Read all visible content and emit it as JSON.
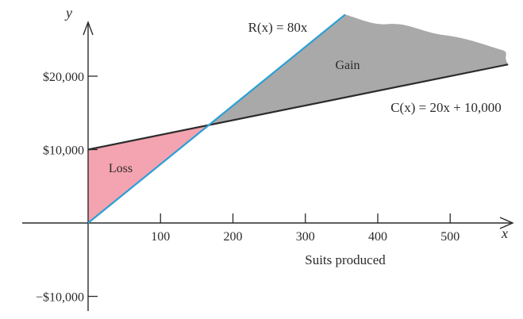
{
  "chart_data": {
    "type": "line",
    "xlabel": "Suits produced",
    "x_axis_symbol": "x",
    "y_axis_symbol": "y",
    "xlim": [
      0,
      580
    ],
    "ylim": [
      -11000,
      28000
    ],
    "x_ticks": [
      100,
      200,
      300,
      400,
      500
    ],
    "x_tick_labels": [
      "100",
      "200",
      "300",
      "400",
      "500"
    ],
    "y_ticks": [
      -10000,
      10000,
      20000
    ],
    "y_tick_labels": [
      "−$10,000",
      "$10,000",
      "$20,000"
    ],
    "series": [
      {
        "name": "R(x) = 80x",
        "color": "#2a9fd6",
        "x": [
          0,
          355
        ],
        "y": [
          0,
          28400
        ]
      },
      {
        "name": "C(x) = 20x + 10,000",
        "color": "#2b2b2b",
        "x": [
          0,
          580
        ],
        "y": [
          10000,
          21600
        ]
      }
    ],
    "break_even": {
      "x": 166.7,
      "y": 13333
    },
    "regions": [
      {
        "label": "Loss",
        "color": "#f4a3b0"
      },
      {
        "label": "Gain",
        "color": "#a9a9a9"
      }
    ]
  }
}
